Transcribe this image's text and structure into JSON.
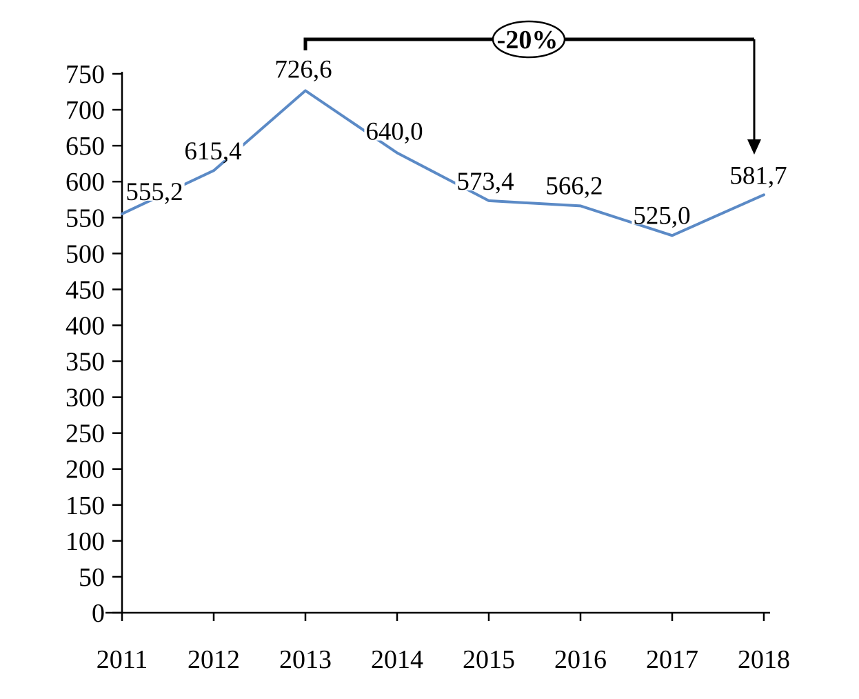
{
  "chart_data": {
    "type": "line",
    "title": "",
    "xlabel": "",
    "ylabel": "",
    "categories": [
      "2011",
      "2012",
      "2013",
      "2014",
      "2015",
      "2016",
      "2017",
      "2018"
    ],
    "series": [
      {
        "name": "value",
        "values": [
          555.2,
          615.4,
          726.6,
          640.0,
          573.4,
          566.2,
          525.0,
          581.7
        ],
        "value_labels": [
          "555,2",
          "615,4",
          "726,6",
          "640,0",
          "573,4",
          "566,2",
          "525,0",
          "581,7"
        ]
      }
    ],
    "ylim": [
      0,
      750
    ],
    "ytick_step": 50,
    "grid": false,
    "legend_position": "none",
    "line_color": "#5B8AC6",
    "axis_color": "#000000",
    "label_color": "#000000",
    "annotation": {
      "label": "-20%",
      "from_category": "2013",
      "to_category": "2018",
      "shape": "ellipse",
      "color": "#000000",
      "fill": "#ffffff"
    }
  }
}
